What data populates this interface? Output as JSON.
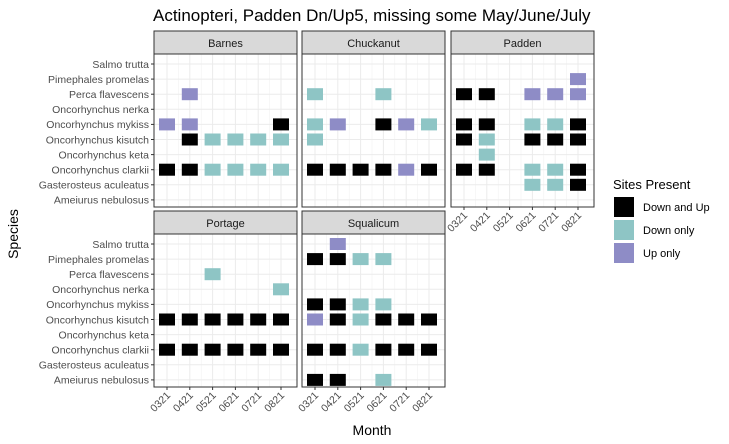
{
  "chart_data": {
    "type": "heatmap",
    "title": "Actinopteri, Padden Dn/Up5, missing some May/June/July",
    "xlabel": "Month",
    "ylabel": "Species",
    "months": [
      "0321",
      "0421",
      "0521",
      "0621",
      "0721",
      "0821"
    ],
    "species": [
      "Salmo trutta",
      "Pimephales promelas",
      "Perca flavescens",
      "Oncorhynchus nerka",
      "Oncorhynchus mykiss",
      "Oncorhynchus kisutch",
      "Oncorhynchus keta",
      "Oncorhynchus clarkii",
      "Gasterosteus aculeatus",
      "Ameiurus nebulosus"
    ],
    "legend": {
      "title": "Sites Present",
      "position": "right",
      "categories": [
        {
          "key": "both",
          "label": "Down and Up",
          "color": "#000000"
        },
        {
          "key": "down",
          "label": "Down only",
          "color": "#8ec5c5"
        },
        {
          "key": "up",
          "label": "Up only",
          "color": "#8e8cc6"
        }
      ]
    },
    "grid": true,
    "panels": [
      {
        "name": "Barnes",
        "cells": [
          {
            "species": "Perca flavescens",
            "month": "0421",
            "status": "up"
          },
          {
            "species": "Oncorhynchus mykiss",
            "month": "0321",
            "status": "up"
          },
          {
            "species": "Oncorhynchus mykiss",
            "month": "0421",
            "status": "up"
          },
          {
            "species": "Oncorhynchus mykiss",
            "month": "0821",
            "status": "both"
          },
          {
            "species": "Oncorhynchus kisutch",
            "month": "0421",
            "status": "both"
          },
          {
            "species": "Oncorhynchus kisutch",
            "month": "0521",
            "status": "down"
          },
          {
            "species": "Oncorhynchus kisutch",
            "month": "0621",
            "status": "down"
          },
          {
            "species": "Oncorhynchus kisutch",
            "month": "0721",
            "status": "down"
          },
          {
            "species": "Oncorhynchus kisutch",
            "month": "0821",
            "status": "down"
          },
          {
            "species": "Oncorhynchus clarkii",
            "month": "0321",
            "status": "both"
          },
          {
            "species": "Oncorhynchus clarkii",
            "month": "0421",
            "status": "both"
          },
          {
            "species": "Oncorhynchus clarkii",
            "month": "0521",
            "status": "down"
          },
          {
            "species": "Oncorhynchus clarkii",
            "month": "0621",
            "status": "down"
          },
          {
            "species": "Oncorhynchus clarkii",
            "month": "0721",
            "status": "down"
          },
          {
            "species": "Oncorhynchus clarkii",
            "month": "0821",
            "status": "down"
          }
        ]
      },
      {
        "name": "Chuckanut",
        "cells": [
          {
            "species": "Perca flavescens",
            "month": "0321",
            "status": "down"
          },
          {
            "species": "Perca flavescens",
            "month": "0621",
            "status": "down"
          },
          {
            "species": "Oncorhynchus mykiss",
            "month": "0321",
            "status": "down"
          },
          {
            "species": "Oncorhynchus mykiss",
            "month": "0421",
            "status": "up"
          },
          {
            "species": "Oncorhynchus mykiss",
            "month": "0621",
            "status": "both"
          },
          {
            "species": "Oncorhynchus mykiss",
            "month": "0721",
            "status": "up"
          },
          {
            "species": "Oncorhynchus mykiss",
            "month": "0821",
            "status": "down"
          },
          {
            "species": "Oncorhynchus kisutch",
            "month": "0321",
            "status": "down"
          },
          {
            "species": "Oncorhynchus clarkii",
            "month": "0321",
            "status": "both"
          },
          {
            "species": "Oncorhynchus clarkii",
            "month": "0421",
            "status": "both"
          },
          {
            "species": "Oncorhynchus clarkii",
            "month": "0521",
            "status": "both"
          },
          {
            "species": "Oncorhynchus clarkii",
            "month": "0621",
            "status": "both"
          },
          {
            "species": "Oncorhynchus clarkii",
            "month": "0721",
            "status": "up"
          },
          {
            "species": "Oncorhynchus clarkii",
            "month": "0821",
            "status": "both"
          }
        ]
      },
      {
        "name": "Padden",
        "cells": [
          {
            "species": "Pimephales promelas",
            "month": "0821",
            "status": "up"
          },
          {
            "species": "Perca flavescens",
            "month": "0321",
            "status": "both"
          },
          {
            "species": "Perca flavescens",
            "month": "0421",
            "status": "both"
          },
          {
            "species": "Perca flavescens",
            "month": "0621",
            "status": "up"
          },
          {
            "species": "Perca flavescens",
            "month": "0721",
            "status": "up"
          },
          {
            "species": "Perca flavescens",
            "month": "0821",
            "status": "up"
          },
          {
            "species": "Oncorhynchus mykiss",
            "month": "0321",
            "status": "both"
          },
          {
            "species": "Oncorhynchus mykiss",
            "month": "0421",
            "status": "both"
          },
          {
            "species": "Oncorhynchus mykiss",
            "month": "0621",
            "status": "down"
          },
          {
            "species": "Oncorhynchus mykiss",
            "month": "0721",
            "status": "down"
          },
          {
            "species": "Oncorhynchus mykiss",
            "month": "0821",
            "status": "both"
          },
          {
            "species": "Oncorhynchus kisutch",
            "month": "0321",
            "status": "both"
          },
          {
            "species": "Oncorhynchus kisutch",
            "month": "0421",
            "status": "down"
          },
          {
            "species": "Oncorhynchus kisutch",
            "month": "0621",
            "status": "both"
          },
          {
            "species": "Oncorhynchus kisutch",
            "month": "0721",
            "status": "both"
          },
          {
            "species": "Oncorhynchus kisutch",
            "month": "0821",
            "status": "both"
          },
          {
            "species": "Oncorhynchus keta",
            "month": "0421",
            "status": "down"
          },
          {
            "species": "Oncorhynchus clarkii",
            "month": "0321",
            "status": "both"
          },
          {
            "species": "Oncorhynchus clarkii",
            "month": "0421",
            "status": "both"
          },
          {
            "species": "Oncorhynchus clarkii",
            "month": "0621",
            "status": "down"
          },
          {
            "species": "Oncorhynchus clarkii",
            "month": "0721",
            "status": "down"
          },
          {
            "species": "Oncorhynchus clarkii",
            "month": "0821",
            "status": "both"
          },
          {
            "species": "Gasterosteus aculeatus",
            "month": "0621",
            "status": "down"
          },
          {
            "species": "Gasterosteus aculeatus",
            "month": "0721",
            "status": "down"
          },
          {
            "species": "Gasterosteus aculeatus",
            "month": "0821",
            "status": "both"
          }
        ]
      },
      {
        "name": "Portage",
        "cells": [
          {
            "species": "Perca flavescens",
            "month": "0521",
            "status": "down"
          },
          {
            "species": "Oncorhynchus nerka",
            "month": "0821",
            "status": "down"
          },
          {
            "species": "Oncorhynchus kisutch",
            "month": "0321",
            "status": "both"
          },
          {
            "species": "Oncorhynchus kisutch",
            "month": "0421",
            "status": "both"
          },
          {
            "species": "Oncorhynchus kisutch",
            "month": "0521",
            "status": "both"
          },
          {
            "species": "Oncorhynchus kisutch",
            "month": "0621",
            "status": "both"
          },
          {
            "species": "Oncorhynchus kisutch",
            "month": "0721",
            "status": "both"
          },
          {
            "species": "Oncorhynchus kisutch",
            "month": "0821",
            "status": "both"
          },
          {
            "species": "Oncorhynchus clarkii",
            "month": "0321",
            "status": "both"
          },
          {
            "species": "Oncorhynchus clarkii",
            "month": "0421",
            "status": "both"
          },
          {
            "species": "Oncorhynchus clarkii",
            "month": "0521",
            "status": "both"
          },
          {
            "species": "Oncorhynchus clarkii",
            "month": "0621",
            "status": "both"
          },
          {
            "species": "Oncorhynchus clarkii",
            "month": "0721",
            "status": "both"
          },
          {
            "species": "Oncorhynchus clarkii",
            "month": "0821",
            "status": "both"
          }
        ]
      },
      {
        "name": "Squalicum",
        "cells": [
          {
            "species": "Salmo trutta",
            "month": "0421",
            "status": "up"
          },
          {
            "species": "Pimephales promelas",
            "month": "0321",
            "status": "both"
          },
          {
            "species": "Pimephales promelas",
            "month": "0421",
            "status": "both"
          },
          {
            "species": "Pimephales promelas",
            "month": "0521",
            "status": "down"
          },
          {
            "species": "Pimephales promelas",
            "month": "0621",
            "status": "down"
          },
          {
            "species": "Oncorhynchus mykiss",
            "month": "0321",
            "status": "both"
          },
          {
            "species": "Oncorhynchus mykiss",
            "month": "0421",
            "status": "both"
          },
          {
            "species": "Oncorhynchus mykiss",
            "month": "0521",
            "status": "down"
          },
          {
            "species": "Oncorhynchus mykiss",
            "month": "0621",
            "status": "down"
          },
          {
            "species": "Oncorhynchus kisutch",
            "month": "0321",
            "status": "up"
          },
          {
            "species": "Oncorhynchus kisutch",
            "month": "0421",
            "status": "both"
          },
          {
            "species": "Oncorhynchus kisutch",
            "month": "0521",
            "status": "down"
          },
          {
            "species": "Oncorhynchus kisutch",
            "month": "0621",
            "status": "both"
          },
          {
            "species": "Oncorhynchus kisutch",
            "month": "0721",
            "status": "both"
          },
          {
            "species": "Oncorhynchus kisutch",
            "month": "0821",
            "status": "both"
          },
          {
            "species": "Oncorhynchus clarkii",
            "month": "0321",
            "status": "both"
          },
          {
            "species": "Oncorhynchus clarkii",
            "month": "0421",
            "status": "both"
          },
          {
            "species": "Oncorhynchus clarkii",
            "month": "0521",
            "status": "down"
          },
          {
            "species": "Oncorhynchus clarkii",
            "month": "0621",
            "status": "both"
          },
          {
            "species": "Oncorhynchus clarkii",
            "month": "0721",
            "status": "both"
          },
          {
            "species": "Oncorhynchus clarkii",
            "month": "0821",
            "status": "both"
          },
          {
            "species": "Ameiurus nebulosus",
            "month": "0321",
            "status": "both"
          },
          {
            "species": "Ameiurus nebulosus",
            "month": "0421",
            "status": "both"
          },
          {
            "species": "Ameiurus nebulosus",
            "month": "0621",
            "status": "down"
          }
        ]
      }
    ]
  }
}
